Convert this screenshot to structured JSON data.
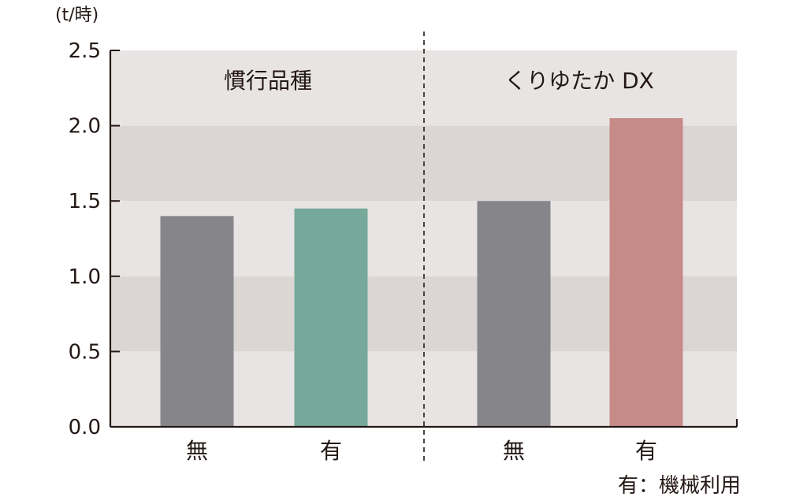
{
  "chart_data": {
    "type": "bar",
    "y_unit": "(t/時)",
    "ylim": [
      0,
      2.5
    ],
    "yticks": [
      "0.0",
      "0.5",
      "1.0",
      "1.5",
      "2.0",
      "2.5"
    ],
    "grid": "alternating horizontal bands",
    "groups": [
      {
        "label": "慣行品種",
        "bars": [
          {
            "category": "無",
            "value": 1.4,
            "color": "#86868a"
          },
          {
            "category": "有",
            "value": 1.45,
            "color": "#76a99a"
          }
        ]
      },
      {
        "label": "くりゆたか DX",
        "bars": [
          {
            "category": "無",
            "value": 1.5,
            "color": "#86868a"
          },
          {
            "category": "有",
            "value": 2.05,
            "color": "#c68a88"
          }
        ]
      }
    ],
    "note": "有：機械利用"
  },
  "colors": {
    "band_light": "#e8e4e3",
    "band_dark": "#dbd6d4",
    "axis": "#231815"
  }
}
